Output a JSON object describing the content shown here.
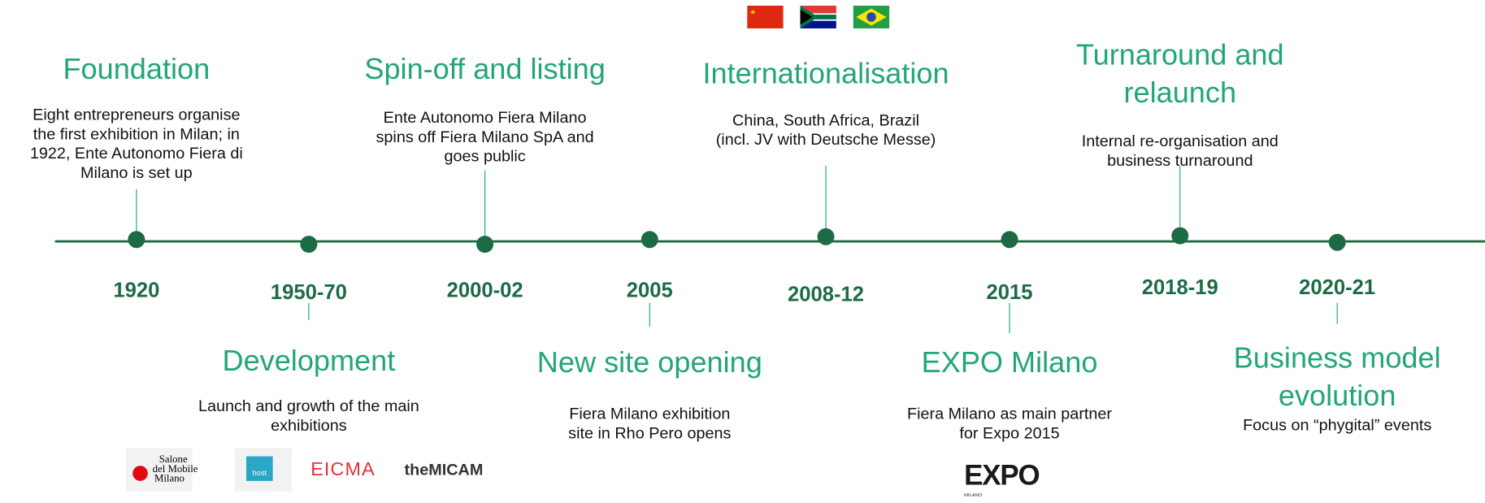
{
  "timeline": {
    "events": [
      {
        "year": "1920",
        "title": [
          "Foundation"
        ],
        "description": [
          "Eight entrepreneurs organise",
          "the first exhibition in Milan; in",
          "1922, Ente Autonomo Fiera di",
          "Milano is set up"
        ]
      },
      {
        "year": "1950-70",
        "title": [
          "Development"
        ],
        "description": [
          "Launch and growth of the main",
          "exhibitions"
        ]
      },
      {
        "year": "2000-02",
        "title": [
          "Spin-off and listing"
        ],
        "description": [
          "Ente Autonomo Fiera Milano",
          "spins off Fiera Milano SpA and",
          "goes public"
        ]
      },
      {
        "year": "2005",
        "title": [
          "New site opening"
        ],
        "description": [
          "Fiera Milano exhibition",
          "site in Rho Pero opens"
        ]
      },
      {
        "year": "2008-12",
        "title": [
          "Internationalisation"
        ],
        "description": [
          "China, South Africa, Brazil",
          "(incl. JV with Deutsche Messe)"
        ]
      },
      {
        "year": "2015",
        "title": [
          "EXPO Milano"
        ],
        "description": [
          "Fiera Milano as main partner",
          "for Expo 2015"
        ]
      },
      {
        "year": "2018-19",
        "title": [
          "Turnaround and",
          "relaunch"
        ],
        "description": [
          "Internal re-organisation and",
          "business turnaround"
        ]
      },
      {
        "year": "2020-21",
        "title": [
          "Business model",
          "evolution"
        ],
        "description": [
          "Focus on “phygital” events"
        ]
      }
    ],
    "logos": {
      "salone": [
        "Salone",
        "del Mobile",
        "Milano"
      ],
      "host": "host",
      "eicma": "EICMA",
      "micam": "theMICAM",
      "expo": "EXPO",
      "expo_city": "MILANO"
    }
  }
}
